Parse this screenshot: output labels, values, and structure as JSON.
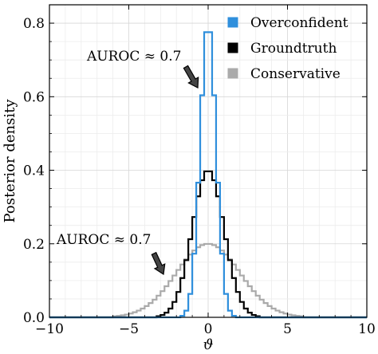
{
  "chart_data": {
    "type": "line",
    "style": "step-histogram",
    "xlabel": "ϑ",
    "ylabel": "Posterior density",
    "xlim": [
      -10,
      10
    ],
    "ylim": [
      0,
      0.85
    ],
    "xticks": [
      -10,
      -5,
      0,
      5,
      10
    ],
    "xtick_labels": [
      "−10",
      "−5",
      "0",
      "5",
      "10"
    ],
    "yticks": [
      0.0,
      0.2,
      0.4,
      0.6,
      0.8
    ],
    "ytick_labels": [
      "0.0",
      "0.2",
      "0.4",
      "0.6",
      "0.8"
    ],
    "grid": true,
    "legend_position": "top-right",
    "series": [
      {
        "name": "Overconfident",
        "color": "#2f8fdc",
        "distribution": "normal",
        "mean": 0,
        "std": 0.5,
        "peak": 0.8
      },
      {
        "name": "Groundtruth",
        "color": "#000000",
        "distribution": "normal",
        "mean": 0,
        "std": 1.0,
        "peak": 0.4
      },
      {
        "name": "Conservative",
        "color": "#aaaaaa",
        "distribution": "normal",
        "mean": 0,
        "std": 2.0,
        "peak": 0.2
      }
    ],
    "annotations": [
      {
        "text": "AUROC ≈ 0.7",
        "points_to": "Overconfident",
        "x": -1.0,
        "y": 0.62
      },
      {
        "text": "AUROC ≈ 0.7",
        "points_to": "Conservative",
        "x": -3.0,
        "y": 0.12
      }
    ]
  }
}
